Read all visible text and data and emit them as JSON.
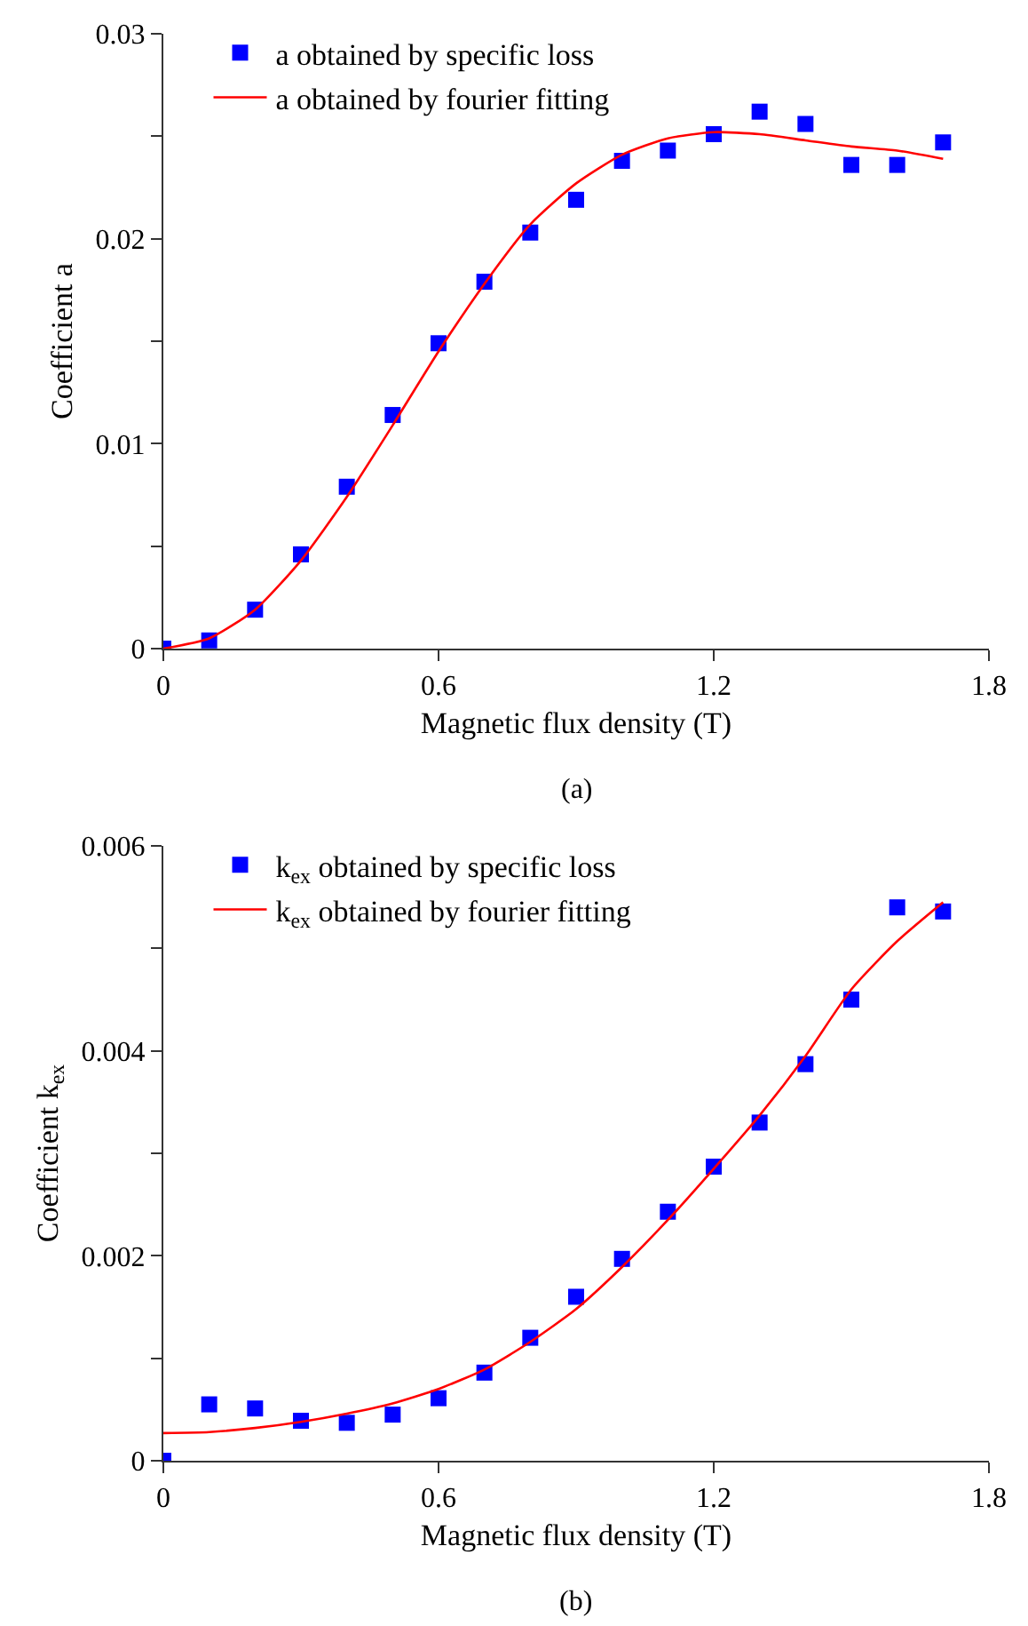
{
  "chart_data": [
    {
      "type": "scatter",
      "xlabel": "Magnetic flux density (T)",
      "ylabel": "Coefficient a",
      "xlim": [
        0,
        1.8
      ],
      "xticks": [
        0,
        0.6,
        1.2,
        1.8
      ],
      "ylim": [
        0,
        0.03
      ],
      "yticks": [
        0,
        {
          "value": 0.005,
          "label": null
        },
        0.01,
        {
          "value": 0.015,
          "label": null
        },
        0.02,
        {
          "value": 0.025,
          "label": null
        },
        0.03
      ],
      "x": [
        0,
        0.1,
        0.2,
        0.3,
        0.4,
        0.5,
        0.6,
        0.7,
        0.8,
        0.9,
        1.0,
        1.1,
        1.2,
        1.3,
        1.4,
        1.5,
        1.6,
        1.7
      ],
      "series": [
        {
          "name": "a obtained by specific loss",
          "marker": "square",
          "color": "#0000ff",
          "values": [
            0,
            0.0004,
            0.0019,
            0.0046,
            0.0079,
            0.0114,
            0.0149,
            0.0179,
            0.0203,
            0.0219,
            0.0238,
            0.0243,
            0.0251,
            0.0262,
            0.0256,
            0.0236,
            0.0236,
            0.0247
          ]
        },
        {
          "name": "a obtained by fourier fitting",
          "type": "line",
          "marker": "none",
          "line_style": "solid",
          "color": "#ff0000",
          "values": [
            0,
            0.0005,
            0.0019,
            0.0043,
            0.0074,
            0.0109,
            0.0145,
            0.0178,
            0.0207,
            0.0227,
            0.0241,
            0.0249,
            0.0252,
            0.0251,
            0.0248,
            0.0245,
            0.0243,
            0.0239
          ]
        }
      ],
      "grid": false,
      "legend": "top",
      "annotations": [
        "(a)"
      ]
    },
    {
      "type": "scatter",
      "xlabel": "Magnetic flux density (T)",
      "ylabel": "Coefficient k$_{ex}$",
      "xlim": [
        0,
        1.8
      ],
      "xticks": [
        0,
        0.6,
        1.2,
        1.8
      ],
      "ylim": [
        0,
        0.006
      ],
      "yticks": [
        0,
        {
          "value": 0.001,
          "label": null
        },
        0.002,
        {
          "value": 0.003,
          "label": null
        },
        0.004,
        {
          "value": 0.005,
          "label": null
        },
        0.006
      ],
      "x": [
        0,
        0.1,
        0.2,
        0.3,
        0.4,
        0.5,
        0.6,
        0.7,
        0.8,
        0.9,
        1.0,
        1.1,
        1.2,
        1.3,
        1.4,
        1.5,
        1.6,
        1.7
      ],
      "series": [
        {
          "name": "k$_{ex}$ obtained by specific loss",
          "marker": "square",
          "color": "#0000ff",
          "values": [
            0,
            0.00055,
            0.00051,
            0.00039,
            0.00037,
            0.00045,
            0.00061,
            0.00086,
            0.0012,
            0.0016,
            0.00197,
            0.00243,
            0.00287,
            0.0033,
            0.00387,
            0.0045,
            0.0054,
            0.00536
          ]
        },
        {
          "name": "k$_{ex}$ obtained by fourier fitting",
          "type": "line",
          "marker": "none",
          "line_style": "solid",
          "color": "#ff0000",
          "values": [
            0.00027,
            0.00028,
            0.00032,
            0.00038,
            0.00046,
            0.00056,
            0.0007,
            0.00089,
            0.00116,
            0.00148,
            0.00189,
            0.00235,
            0.00285,
            0.00337,
            0.00395,
            0.0046,
            0.00507,
            0.00545
          ]
        }
      ],
      "grid": false,
      "legend": "top",
      "annotations": [
        "(b)"
      ]
    }
  ]
}
